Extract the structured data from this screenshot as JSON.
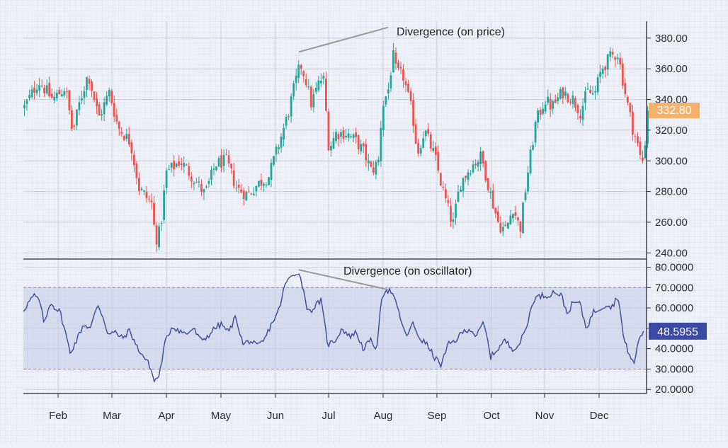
{
  "chart_data": [
    {
      "type": "candlestick",
      "panel": "price",
      "months": [
        "Feb",
        "Mar",
        "Apr",
        "May",
        "Jun",
        "Jul",
        "Aug",
        "Sep",
        "Oct",
        "Nov",
        "Dec"
      ],
      "yticks": [
        "380.00",
        "360.00",
        "340.00",
        "320.00",
        "300.00",
        "280.00",
        "260.00",
        "240.00"
      ],
      "ytick_values": [
        380,
        360,
        340,
        320,
        300,
        280,
        260,
        240
      ],
      "ylim": [
        235,
        392
      ],
      "colors": {
        "up": "#26a69a",
        "down": "#ef5350"
      },
      "last_price_label": "332.80",
      "last_price": 332.8,
      "last_price_color": "#f6b26b",
      "annotation": {
        "text": "Divergence (on price)",
        "from_value": 371,
        "to_value": 387
      },
      "series_close_keypoints": [
        {
          "x": 0,
          "y": 335
        },
        {
          "x": 20,
          "y": 352
        },
        {
          "x": 40,
          "y": 340
        },
        {
          "x": 58,
          "y": 348
        },
        {
          "x": 68,
          "y": 318
        },
        {
          "x": 78,
          "y": 338
        },
        {
          "x": 90,
          "y": 357
        },
        {
          "x": 105,
          "y": 328
        },
        {
          "x": 120,
          "y": 345
        },
        {
          "x": 132,
          "y": 322
        },
        {
          "x": 150,
          "y": 312
        },
        {
          "x": 162,
          "y": 282
        },
        {
          "x": 180,
          "y": 272
        },
        {
          "x": 185,
          "y": 248
        },
        {
          "x": 192,
          "y": 255
        },
        {
          "x": 200,
          "y": 292
        },
        {
          "x": 220,
          "y": 300
        },
        {
          "x": 240,
          "y": 288
        },
        {
          "x": 255,
          "y": 278
        },
        {
          "x": 270,
          "y": 298
        },
        {
          "x": 285,
          "y": 300
        },
        {
          "x": 300,
          "y": 282
        },
        {
          "x": 315,
          "y": 278
        },
        {
          "x": 330,
          "y": 285
        },
        {
          "x": 345,
          "y": 290
        },
        {
          "x": 360,
          "y": 312
        },
        {
          "x": 372,
          "y": 330
        },
        {
          "x": 382,
          "y": 350
        },
        {
          "x": 390,
          "y": 363
        },
        {
          "x": 398,
          "y": 352
        },
        {
          "x": 405,
          "y": 337
        },
        {
          "x": 415,
          "y": 350
        },
        {
          "x": 422,
          "y": 355
        },
        {
          "x": 430,
          "y": 308
        },
        {
          "x": 440,
          "y": 318
        },
        {
          "x": 455,
          "y": 318
        },
        {
          "x": 470,
          "y": 312
        },
        {
          "x": 480,
          "y": 305
        },
        {
          "x": 490,
          "y": 293
        },
        {
          "x": 500,
          "y": 300
        },
        {
          "x": 505,
          "y": 335
        },
        {
          "x": 515,
          "y": 348
        },
        {
          "x": 520,
          "y": 370
        },
        {
          "x": 525,
          "y": 358
        },
        {
          "x": 535,
          "y": 355
        },
        {
          "x": 548,
          "y": 330
        },
        {
          "x": 555,
          "y": 305
        },
        {
          "x": 565,
          "y": 320
        },
        {
          "x": 580,
          "y": 302
        },
        {
          "x": 590,
          "y": 282
        },
        {
          "x": 605,
          "y": 258
        },
        {
          "x": 615,
          "y": 285
        },
        {
          "x": 630,
          "y": 296
        },
        {
          "x": 645,
          "y": 303
        },
        {
          "x": 660,
          "y": 275
        },
        {
          "x": 670,
          "y": 258
        },
        {
          "x": 680,
          "y": 255
        },
        {
          "x": 690,
          "y": 270
        },
        {
          "x": 700,
          "y": 255
        },
        {
          "x": 710,
          "y": 290
        },
        {
          "x": 722,
          "y": 325
        },
        {
          "x": 735,
          "y": 340
        },
        {
          "x": 745,
          "y": 335
        },
        {
          "x": 760,
          "y": 345
        },
        {
          "x": 775,
          "y": 340
        },
        {
          "x": 785,
          "y": 332
        },
        {
          "x": 795,
          "y": 345
        },
        {
          "x": 805,
          "y": 343
        },
        {
          "x": 815,
          "y": 360
        },
        {
          "x": 828,
          "y": 368
        },
        {
          "x": 838,
          "y": 370
        },
        {
          "x": 848,
          "y": 345
        },
        {
          "x": 858,
          "y": 323
        },
        {
          "x": 865,
          "y": 312
        },
        {
          "x": 872,
          "y": 297
        },
        {
          "x": 880,
          "y": 325
        },
        {
          "x": 882,
          "y": 332.8
        }
      ]
    },
    {
      "type": "line",
      "panel": "oscillator",
      "yticks": [
        "80.0000",
        "70.0000",
        "60.0000",
        "50.0000",
        "40.0000",
        "30.0000",
        "20.0000"
      ],
      "ytick_values": [
        80,
        70,
        60,
        50,
        40,
        30,
        20
      ],
      "ylim": [
        20,
        80
      ],
      "band": [
        30,
        70
      ],
      "line_color": "#3a4a9a",
      "last_value_label": "48.5955",
      "last_value": 48.5955,
      "last_value_color": "#3a4aa5",
      "annotation": {
        "text": "Divergence (on oscillator)",
        "from_value": 78,
        "to_value": 69
      },
      "keypoints": [
        {
          "x": 0,
          "y": 59
        },
        {
          "x": 8,
          "y": 63
        },
        {
          "x": 15,
          "y": 66
        },
        {
          "x": 22,
          "y": 64
        },
        {
          "x": 30,
          "y": 52
        },
        {
          "x": 38,
          "y": 63
        },
        {
          "x": 45,
          "y": 60
        },
        {
          "x": 52,
          "y": 58
        },
        {
          "x": 60,
          "y": 47
        },
        {
          "x": 66,
          "y": 38
        },
        {
          "x": 75,
          "y": 44
        },
        {
          "x": 85,
          "y": 52
        },
        {
          "x": 95,
          "y": 50
        },
        {
          "x": 105,
          "y": 62
        },
        {
          "x": 112,
          "y": 56
        },
        {
          "x": 120,
          "y": 47
        },
        {
          "x": 130,
          "y": 48
        },
        {
          "x": 140,
          "y": 45
        },
        {
          "x": 150,
          "y": 49
        },
        {
          "x": 160,
          "y": 41
        },
        {
          "x": 170,
          "y": 36
        },
        {
          "x": 178,
          "y": 32
        },
        {
          "x": 185,
          "y": 24
        },
        {
          "x": 192,
          "y": 27
        },
        {
          "x": 200,
          "y": 43
        },
        {
          "x": 210,
          "y": 51
        },
        {
          "x": 220,
          "y": 49
        },
        {
          "x": 230,
          "y": 47
        },
        {
          "x": 240,
          "y": 50
        },
        {
          "x": 250,
          "y": 44
        },
        {
          "x": 260,
          "y": 46
        },
        {
          "x": 270,
          "y": 50
        },
        {
          "x": 280,
          "y": 52
        },
        {
          "x": 290,
          "y": 48
        },
        {
          "x": 300,
          "y": 56
        },
        {
          "x": 310,
          "y": 42
        },
        {
          "x": 320,
          "y": 44
        },
        {
          "x": 330,
          "y": 41
        },
        {
          "x": 340,
          "y": 44
        },
        {
          "x": 350,
          "y": 52
        },
        {
          "x": 360,
          "y": 58
        },
        {
          "x": 370,
          "y": 72
        },
        {
          "x": 380,
          "y": 76
        },
        {
          "x": 388,
          "y": 78
        },
        {
          "x": 395,
          "y": 70
        },
        {
          "x": 402,
          "y": 58
        },
        {
          "x": 410,
          "y": 60
        },
        {
          "x": 420,
          "y": 64
        },
        {
          "x": 430,
          "y": 42
        },
        {
          "x": 440,
          "y": 44
        },
        {
          "x": 450,
          "y": 50
        },
        {
          "x": 460,
          "y": 46
        },
        {
          "x": 470,
          "y": 48
        },
        {
          "x": 480,
          "y": 40
        },
        {
          "x": 490,
          "y": 44
        },
        {
          "x": 500,
          "y": 40
        },
        {
          "x": 505,
          "y": 65
        },
        {
          "x": 512,
          "y": 69
        },
        {
          "x": 520,
          "y": 68
        },
        {
          "x": 530,
          "y": 58
        },
        {
          "x": 540,
          "y": 46
        },
        {
          "x": 550,
          "y": 52
        },
        {
          "x": 560,
          "y": 45
        },
        {
          "x": 570,
          "y": 42
        },
        {
          "x": 580,
          "y": 36
        },
        {
          "x": 590,
          "y": 32
        },
        {
          "x": 600,
          "y": 42
        },
        {
          "x": 610,
          "y": 44
        },
        {
          "x": 620,
          "y": 48
        },
        {
          "x": 630,
          "y": 50
        },
        {
          "x": 640,
          "y": 46
        },
        {
          "x": 650,
          "y": 53
        },
        {
          "x": 660,
          "y": 36
        },
        {
          "x": 670,
          "y": 40
        },
        {
          "x": 680,
          "y": 44
        },
        {
          "x": 690,
          "y": 40
        },
        {
          "x": 700,
          "y": 42
        },
        {
          "x": 710,
          "y": 50
        },
        {
          "x": 720,
          "y": 64
        },
        {
          "x": 730,
          "y": 66
        },
        {
          "x": 740,
          "y": 66
        },
        {
          "x": 750,
          "y": 68
        },
        {
          "x": 760,
          "y": 66
        },
        {
          "x": 768,
          "y": 57
        },
        {
          "x": 775,
          "y": 62
        },
        {
          "x": 785,
          "y": 63
        },
        {
          "x": 795,
          "y": 50
        },
        {
          "x": 805,
          "y": 58
        },
        {
          "x": 815,
          "y": 60
        },
        {
          "x": 825,
          "y": 62
        },
        {
          "x": 830,
          "y": 60
        },
        {
          "x": 840,
          "y": 66
        },
        {
          "x": 848,
          "y": 44
        },
        {
          "x": 855,
          "y": 38
        },
        {
          "x": 862,
          "y": 32
        },
        {
          "x": 870,
          "y": 46
        },
        {
          "x": 877,
          "y": 48.5955
        }
      ]
    }
  ]
}
